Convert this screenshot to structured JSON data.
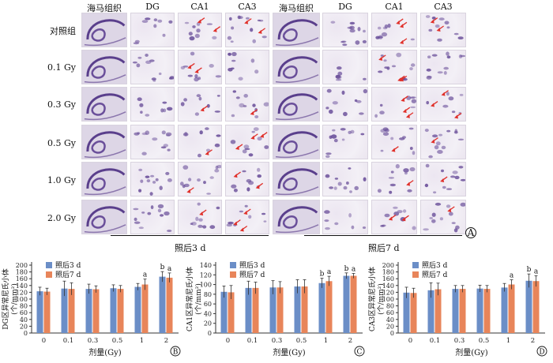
{
  "figure": {
    "columns": [
      "海马组织",
      "DG",
      "CA1",
      "CA3"
    ],
    "rows": [
      "对照组",
      "0.1 Gy",
      "0.3 Gy",
      "0.5 Gy",
      "1.0 Gy",
      "2.0 Gy"
    ],
    "group_captions": [
      "照后3 d",
      "照后7 d"
    ],
    "panel_labels": [
      "A",
      "B",
      "C",
      "D"
    ],
    "colors": {
      "series_3d": "#6b8ec7",
      "series_7d": "#e8855a",
      "arrow": "#e0302a",
      "tile_bg": "#f1eef4",
      "hippo": "#a898c2",
      "nucleus": "#6a4f9a"
    },
    "icons": [
      "red-arrow-icon",
      "circled-letter-icon"
    ]
  },
  "chart_data": [
    {
      "type": "bar",
      "panel": "B",
      "ylabel": "DG区异常尼氏小体\n(个/mm²)",
      "xlabel": "剂量(Gy)",
      "categories": [
        "0",
        "0.1",
        "0.3",
        "0.5",
        "1",
        "2"
      ],
      "ylim": [
        0,
        200
      ],
      "yticks": [
        0,
        20,
        40,
        60,
        80,
        100,
        120,
        140,
        160,
        180,
        200
      ],
      "series": [
        {
          "name": "照后3 d",
          "values": [
            123,
            131,
            130,
            132,
            136,
            166
          ],
          "errors": [
            12,
            22,
            14,
            10,
            10,
            15
          ]
        },
        {
          "name": "照后7 d",
          "values": [
            122,
            130,
            129,
            130,
            143,
            163
          ],
          "errors": [
            10,
            18,
            10,
            10,
            16,
            14
          ]
        }
      ],
      "annotations": [
        {
          "category": "1",
          "series": 1,
          "text": "a"
        },
        {
          "category": "2",
          "series": 0,
          "text": "b"
        },
        {
          "category": "2",
          "series": 1,
          "text": "a"
        }
      ],
      "legend": "top-left"
    },
    {
      "type": "bar",
      "panel": "C",
      "ylabel": "CA1区异常尼氏小体\n(个/mm²)",
      "xlabel": "剂量(Gy)",
      "categories": [
        "0",
        "0.1",
        "0.3",
        "0.5",
        "1",
        "2"
      ],
      "ylim": [
        0,
        140
      ],
      "yticks": [
        0,
        20,
        40,
        60,
        80,
        100,
        120,
        140
      ],
      "series": [
        {
          "name": "照后3 d",
          "values": [
            85,
            93,
            94,
            96,
            103,
            118
          ],
          "errors": [
            12,
            14,
            14,
            14,
            10,
            6
          ]
        },
        {
          "name": "照后7 d",
          "values": [
            84,
            93,
            94,
            96,
            107,
            118
          ],
          "errors": [
            14,
            12,
            12,
            14,
            10,
            5
          ]
        }
      ],
      "annotations": [
        {
          "category": "1",
          "series": 0,
          "text": "b"
        },
        {
          "category": "1",
          "series": 1,
          "text": "a"
        },
        {
          "category": "2",
          "series": 0,
          "text": "b"
        },
        {
          "category": "2",
          "series": 1,
          "text": "a"
        }
      ],
      "legend": "top-left"
    },
    {
      "type": "bar",
      "panel": "D",
      "ylabel": "CA3区异常尼氏小体\n(个/mm²)",
      "xlabel": "剂量(Gy)",
      "categories": [
        "0",
        "0.1",
        "0.3",
        "0.5",
        "1",
        "2"
      ],
      "ylim": [
        0,
        200
      ],
      "yticks": [
        0,
        20,
        40,
        60,
        80,
        100,
        120,
        140,
        160,
        180,
        200
      ],
      "series": [
        {
          "name": "照后3 d",
          "values": [
            119,
            126,
            130,
            131,
            134,
            154
          ],
          "errors": [
            16,
            22,
            10,
            10,
            12,
            20
          ]
        },
        {
          "name": "照后7 d",
          "values": [
            118,
            129,
            130,
            130,
            143,
            153
          ],
          "errors": [
            14,
            18,
            10,
            10,
            14,
            16
          ]
        }
      ],
      "annotations": [
        {
          "category": "1",
          "series": 1,
          "text": "a"
        },
        {
          "category": "2",
          "series": 0,
          "text": "b"
        },
        {
          "category": "2",
          "series": 1,
          "text": "a"
        }
      ],
      "legend": "top-left"
    }
  ]
}
